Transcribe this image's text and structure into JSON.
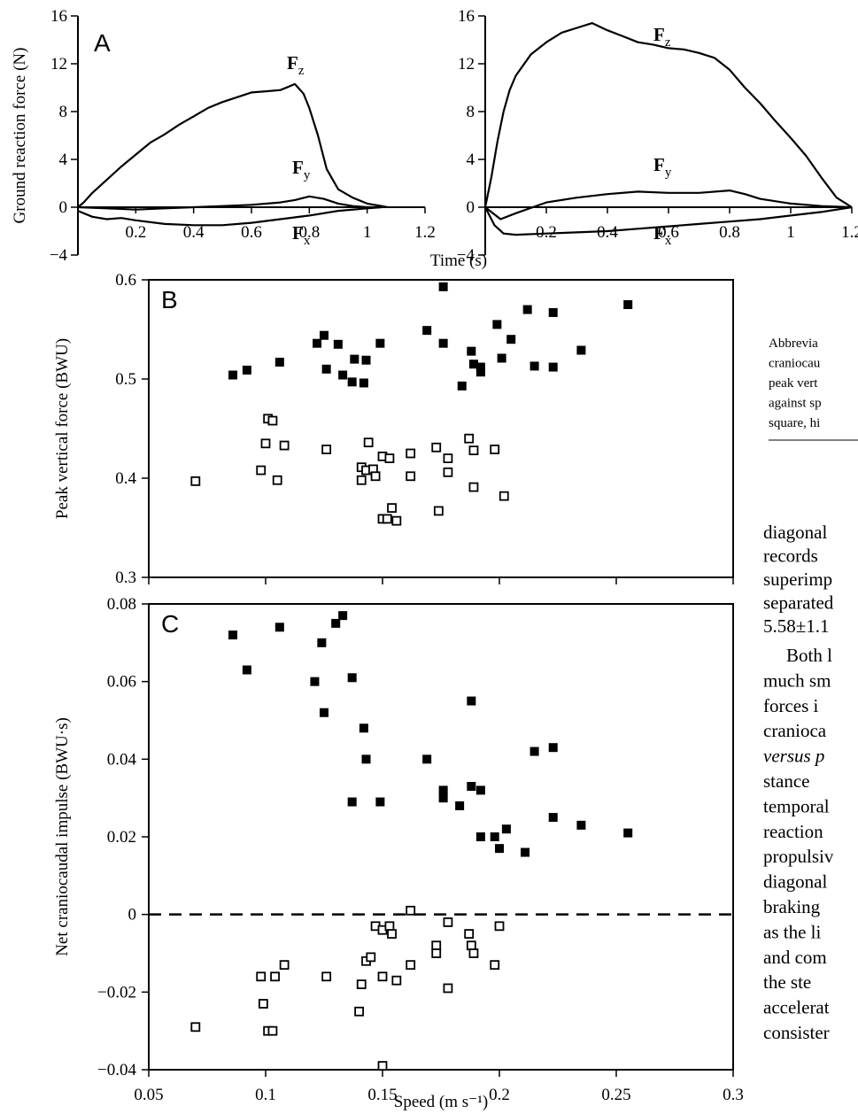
{
  "chart_data": [
    {
      "panel": "A",
      "type": "line",
      "ylabel": "Ground reaction force (N)",
      "xlabel": "Time (s)",
      "xlim": [
        0,
        1.2
      ],
      "ylim": [
        -4,
        16
      ],
      "x_ticks": [
        "0.2",
        "0.4",
        "0.6",
        "0.8",
        "1",
        "1.2"
      ],
      "y_ticks": [
        "16",
        "12",
        "8",
        "4",
        "0",
        "−4"
      ],
      "series": [
        {
          "name": "Fz",
          "x": [
            0,
            0.02,
            0.05,
            0.1,
            0.15,
            0.2,
            0.25,
            0.3,
            0.35,
            0.4,
            0.45,
            0.5,
            0.55,
            0.6,
            0.65,
            0.7,
            0.73,
            0.75,
            0.78,
            0.8,
            0.83,
            0.86,
            0.9,
            0.95,
            1.0,
            1.05,
            1.07
          ],
          "y": [
            0,
            0.4,
            1.2,
            2.3,
            3.4,
            4.4,
            5.4,
            6.1,
            6.9,
            7.6,
            8.3,
            8.8,
            9.2,
            9.6,
            9.7,
            9.8,
            10.1,
            10.3,
            9.5,
            8.3,
            6.0,
            3.2,
            1.5,
            0.8,
            0.3,
            0.1,
            0
          ]
        },
        {
          "name": "Fy",
          "x": [
            0,
            0.1,
            0.2,
            0.3,
            0.4,
            0.5,
            0.6,
            0.7,
            0.75,
            0.8,
            0.85,
            0.9,
            0.95,
            1.0,
            1.05
          ],
          "y": [
            0,
            -0.1,
            -0.2,
            -0.1,
            0,
            0.1,
            0.2,
            0.4,
            0.6,
            0.9,
            0.7,
            0.3,
            0.1,
            0,
            0
          ]
        },
        {
          "name": "Fx",
          "x": [
            0,
            0.05,
            0.1,
            0.15,
            0.2,
            0.3,
            0.4,
            0.5,
            0.6,
            0.7,
            0.8,
            0.9,
            1.0,
            1.05
          ],
          "y": [
            -0.3,
            -0.8,
            -1.0,
            -0.9,
            -1.1,
            -1.4,
            -1.5,
            -1.5,
            -1.3,
            -1.0,
            -0.7,
            -0.3,
            -0.1,
            0
          ]
        }
      ]
    },
    {
      "panel": "A-right",
      "type": "line",
      "xlim": [
        0,
        1.2
      ],
      "ylim": [
        -4,
        16
      ],
      "x_ticks": [
        "0.2",
        "0.4",
        "0.6",
        "0.8",
        "1",
        "1.2"
      ],
      "y_ticks": [
        "16",
        "12",
        "8",
        "4",
        "0",
        "−4"
      ],
      "series": [
        {
          "name": "Fz",
          "x": [
            0,
            0.02,
            0.04,
            0.06,
            0.08,
            0.1,
            0.15,
            0.2,
            0.25,
            0.3,
            0.35,
            0.4,
            0.45,
            0.5,
            0.55,
            0.6,
            0.65,
            0.7,
            0.75,
            0.8,
            0.85,
            0.9,
            0.95,
            1.0,
            1.05,
            1.1,
            1.15,
            1.2
          ],
          "y": [
            0,
            2.5,
            5.5,
            8.0,
            9.8,
            11.0,
            12.8,
            13.8,
            14.6,
            15.0,
            15.4,
            14.8,
            14.3,
            13.8,
            13.6,
            13.3,
            13.2,
            12.9,
            12.5,
            11.5,
            10.0,
            8.7,
            7.2,
            5.8,
            4.3,
            2.5,
            0.8,
            0
          ]
        },
        {
          "name": "Fy",
          "x": [
            0,
            0.05,
            0.1,
            0.2,
            0.3,
            0.4,
            0.5,
            0.6,
            0.7,
            0.8,
            0.85,
            0.9,
            1.0,
            1.1,
            1.2
          ],
          "y": [
            0,
            -1.0,
            -0.5,
            0.4,
            0.8,
            1.1,
            1.3,
            1.2,
            1.2,
            1.4,
            1.1,
            0.7,
            0.3,
            0.1,
            0
          ]
        },
        {
          "name": "Fx",
          "x": [
            0,
            0.03,
            0.06,
            0.1,
            0.2,
            0.3,
            0.4,
            0.5,
            0.6,
            0.7,
            0.8,
            0.9,
            1.0,
            1.1,
            1.2
          ],
          "y": [
            0,
            -1.5,
            -2.2,
            -2.3,
            -2.2,
            -2.1,
            -2.0,
            -1.8,
            -1.6,
            -1.4,
            -1.2,
            -1.0,
            -0.7,
            -0.4,
            0
          ]
        }
      ]
    },
    {
      "panel": "B",
      "type": "scatter",
      "ylabel": "Peak vertical force (BWU)",
      "xlim": [
        0.05,
        0.3
      ],
      "ylim": [
        0.3,
        0.6
      ],
      "y_ticks": [
        "0.6",
        "0.5",
        "0.4",
        "0.3"
      ],
      "series": [
        {
          "marker": "filled-square",
          "points": [
            [
              0.086,
              0.504
            ],
            [
              0.092,
              0.509
            ],
            [
              0.106,
              0.517
            ],
            [
              0.122,
              0.536
            ],
            [
              0.125,
              0.544
            ],
            [
              0.126,
              0.51
            ],
            [
              0.131,
              0.535
            ],
            [
              0.133,
              0.504
            ],
            [
              0.137,
              0.497
            ],
            [
              0.138,
              0.52
            ],
            [
              0.142,
              0.496
            ],
            [
              0.143,
              0.519
            ],
            [
              0.149,
              0.536
            ],
            [
              0.169,
              0.549
            ],
            [
              0.176,
              0.536
            ],
            [
              0.176,
              0.593
            ],
            [
              0.184,
              0.493
            ],
            [
              0.188,
              0.528
            ],
            [
              0.189,
              0.515
            ],
            [
              0.192,
              0.512
            ],
            [
              0.192,
              0.507
            ],
            [
              0.199,
              0.555
            ],
            [
              0.201,
              0.521
            ],
            [
              0.205,
              0.54
            ],
            [
              0.212,
              0.57
            ],
            [
              0.215,
              0.513
            ],
            [
              0.223,
              0.567
            ],
            [
              0.223,
              0.512
            ],
            [
              0.235,
              0.529
            ],
            [
              0.255,
              0.575
            ]
          ]
        },
        {
          "marker": "open-square",
          "points": [
            [
              0.07,
              0.397
            ],
            [
              0.098,
              0.408
            ],
            [
              0.1,
              0.435
            ],
            [
              0.101,
              0.46
            ],
            [
              0.103,
              0.458
            ],
            [
              0.105,
              0.398
            ],
            [
              0.108,
              0.433
            ],
            [
              0.126,
              0.429
            ],
            [
              0.141,
              0.411
            ],
            [
              0.141,
              0.398
            ],
            [
              0.143,
              0.408
            ],
            [
              0.144,
              0.436
            ],
            [
              0.146,
              0.409
            ],
            [
              0.147,
              0.402
            ],
            [
              0.15,
              0.422
            ],
            [
              0.15,
              0.359
            ],
            [
              0.152,
              0.359
            ],
            [
              0.153,
              0.42
            ],
            [
              0.154,
              0.37
            ],
            [
              0.156,
              0.357
            ],
            [
              0.162,
              0.425
            ],
            [
              0.162,
              0.402
            ],
            [
              0.173,
              0.431
            ],
            [
              0.174,
              0.367
            ],
            [
              0.178,
              0.42
            ],
            [
              0.178,
              0.406
            ],
            [
              0.187,
              0.44
            ],
            [
              0.189,
              0.428
            ],
            [
              0.189,
              0.391
            ],
            [
              0.198,
              0.429
            ],
            [
              0.202,
              0.382
            ]
          ]
        }
      ]
    },
    {
      "panel": "C",
      "type": "scatter",
      "ylabel": "Net craniocaudal impulse (BWU·s)",
      "xlabel": "Speed (m s⁻¹)",
      "xlim": [
        0.05,
        0.3
      ],
      "ylim": [
        -0.04,
        0.08
      ],
      "x_ticks": [
        "0.05",
        "0.1",
        "0.15",
        "0.2",
        "0.25",
        "0.3"
      ],
      "y_ticks": [
        "0.08",
        "0.06",
        "0.04",
        "0.02",
        "0",
        "−0.02",
        "−0.04"
      ],
      "reference_line": {
        "y": 0,
        "style": "dashed"
      },
      "series": [
        {
          "marker": "filled-square",
          "points": [
            [
              0.086,
              0.072
            ],
            [
              0.092,
              0.063
            ],
            [
              0.106,
              0.074
            ],
            [
              0.121,
              0.06
            ],
            [
              0.124,
              0.07
            ],
            [
              0.125,
              0.052
            ],
            [
              0.13,
              0.075
            ],
            [
              0.133,
              0.077
            ],
            [
              0.137,
              0.061
            ],
            [
              0.137,
              0.029
            ],
            [
              0.142,
              0.048
            ],
            [
              0.143,
              0.04
            ],
            [
              0.149,
              0.029
            ],
            [
              0.169,
              0.04
            ],
            [
              0.176,
              0.032
            ],
            [
              0.176,
              0.03
            ],
            [
              0.183,
              0.028
            ],
            [
              0.188,
              0.055
            ],
            [
              0.188,
              0.033
            ],
            [
              0.192,
              0.032
            ],
            [
              0.192,
              0.02
            ],
            [
              0.198,
              0.02
            ],
            [
              0.2,
              0.017
            ],
            [
              0.203,
              0.022
            ],
            [
              0.211,
              0.016
            ],
            [
              0.215,
              0.042
            ],
            [
              0.223,
              0.043
            ],
            [
              0.223,
              0.025
            ],
            [
              0.235,
              0.023
            ],
            [
              0.255,
              0.021
            ]
          ]
        },
        {
          "marker": "open-square",
          "points": [
            [
              0.07,
              -0.029
            ],
            [
              0.098,
              -0.016
            ],
            [
              0.099,
              -0.023
            ],
            [
              0.101,
              -0.03
            ],
            [
              0.103,
              -0.03
            ],
            [
              0.104,
              -0.016
            ],
            [
              0.108,
              -0.013
            ],
            [
              0.126,
              -0.016
            ],
            [
              0.14,
              -0.025
            ],
            [
              0.141,
              -0.018
            ],
            [
              0.143,
              -0.012
            ],
            [
              0.145,
              -0.011
            ],
            [
              0.147,
              -0.003
            ],
            [
              0.15,
              -0.004
            ],
            [
              0.15,
              -0.016
            ],
            [
              0.15,
              -0.039
            ],
            [
              0.153,
              -0.003
            ],
            [
              0.154,
              -0.005
            ],
            [
              0.156,
              -0.017
            ],
            [
              0.162,
              0.001
            ],
            [
              0.162,
              -0.013
            ],
            [
              0.173,
              -0.008
            ],
            [
              0.173,
              -0.01
            ],
            [
              0.178,
              -0.002
            ],
            [
              0.178,
              -0.019
            ],
            [
              0.187,
              -0.005
            ],
            [
              0.188,
              -0.008
            ],
            [
              0.189,
              -0.01
            ],
            [
              0.198,
              -0.013
            ],
            [
              0.2,
              -0.003
            ]
          ]
        }
      ]
    }
  ],
  "side_text": {
    "caption_lines": [
      "Abbrevia",
      "craniocau",
      "peak vert",
      "against sp",
      "square, hi"
    ],
    "body_lines": [
      "diagonal",
      "records",
      "superimp",
      "separated",
      "5.58±1.1",
      "Both l",
      "much sm",
      "forces i",
      "cranioca",
      "versus p",
      "stance",
      "temporal",
      "reaction",
      "propulsiv",
      "diagonal",
      "braking",
      "as the li",
      "and com",
      "the ste",
      "accelerat",
      "consister"
    ]
  }
}
